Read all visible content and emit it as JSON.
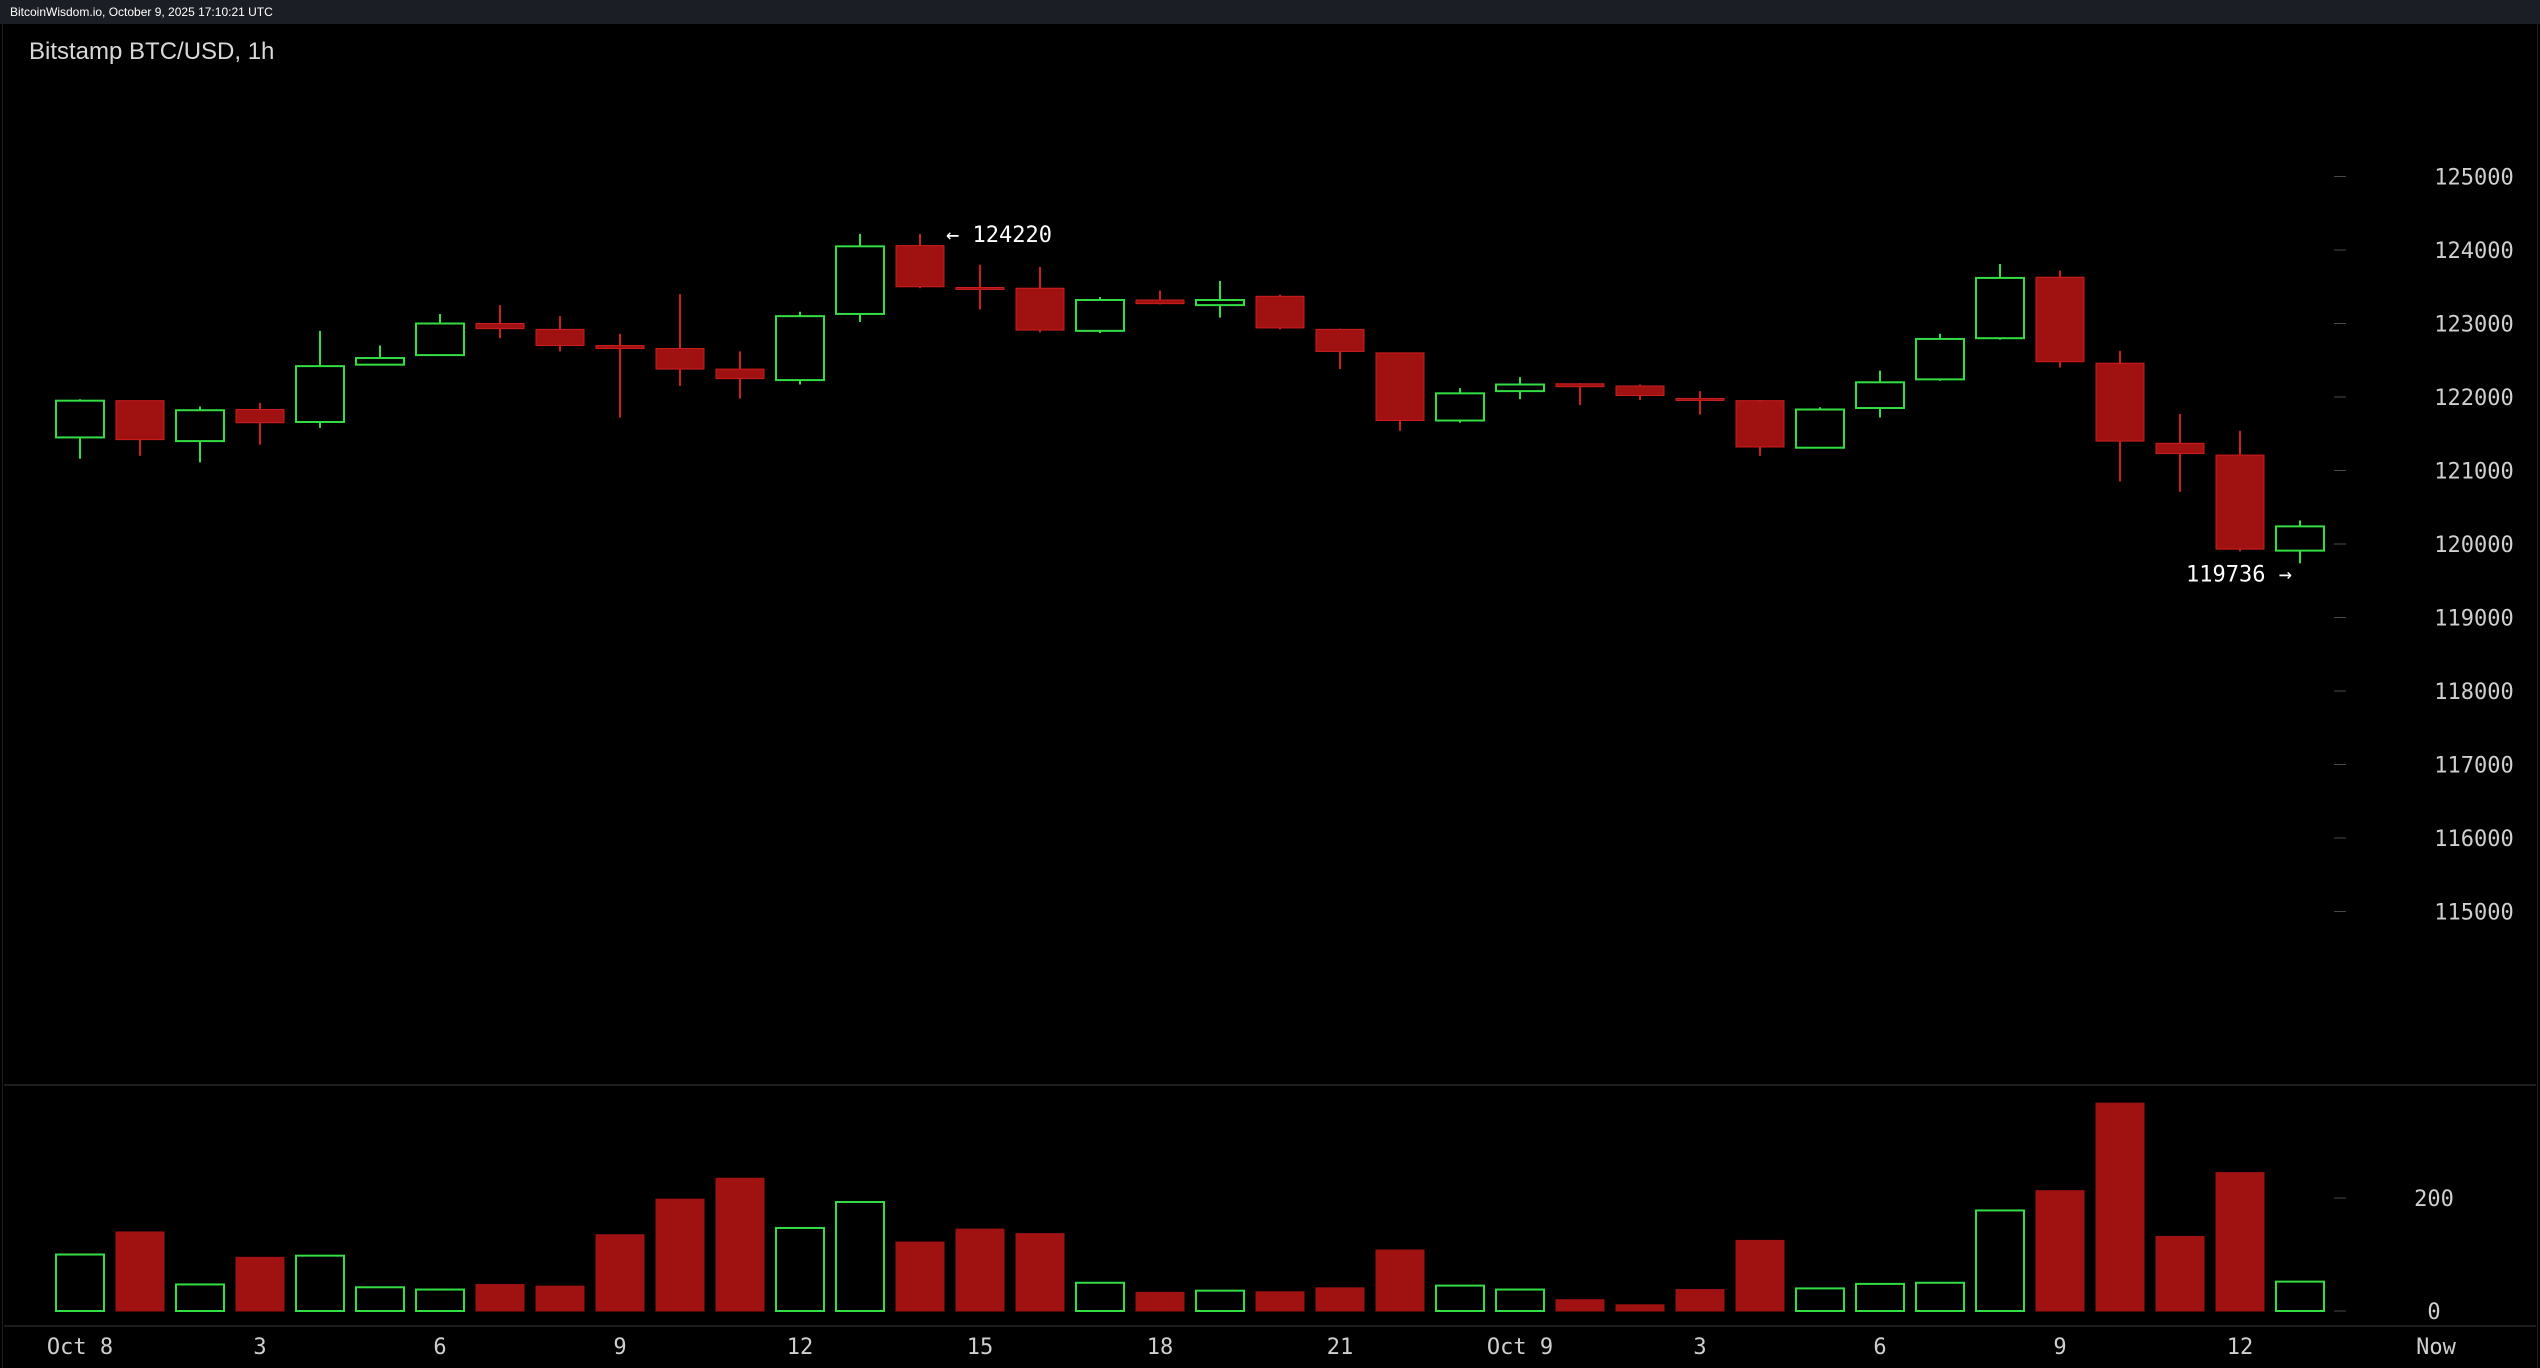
{
  "header": {
    "watermark": "BitcoinWisdom.io, October 9, 2025 17:10:21 UTC",
    "title": "Bitstamp BTC/USD, 1h"
  },
  "colors": {
    "up": "#33dd44",
    "down": "#a01212",
    "down_wick": "#cc1e1e",
    "background": "#000000",
    "grid": "#3a3a3a"
  },
  "chart_data": {
    "type": "candlestick",
    "title": "Bitstamp BTC/USD, 1h",
    "ylim": [
      114000,
      126000
    ],
    "y_ticks": [
      "125000",
      "124000",
      "123000",
      "122000",
      "121000",
      "120000",
      "119000",
      "118000",
      "117000",
      "116000",
      "115000"
    ],
    "volume_ylim": [
      0,
      370
    ],
    "volume_ticks": [
      "200",
      "0"
    ],
    "x_ticks": [
      {
        "i": 0,
        "label": "Oct 8"
      },
      {
        "i": 3,
        "label": "3"
      },
      {
        "i": 6,
        "label": "6"
      },
      {
        "i": 9,
        "label": "9"
      },
      {
        "i": 12,
        "label": "12"
      },
      {
        "i": 15,
        "label": "15"
      },
      {
        "i": 18,
        "label": "18"
      },
      {
        "i": 21,
        "label": "21"
      },
      {
        "i": 24,
        "label": "Oct 9"
      },
      {
        "i": 27,
        "label": "3"
      },
      {
        "i": 30,
        "label": "6"
      },
      {
        "i": 33,
        "label": "9"
      },
      {
        "i": 36,
        "label": "12"
      },
      {
        "i": 39,
        "label": "Now"
      }
    ],
    "annotations": [
      {
        "label": "← 124220",
        "i": 14,
        "price": 124220,
        "side": "right"
      },
      {
        "label": "119736 →",
        "i": 37,
        "price": 119736,
        "side": "left"
      }
    ],
    "candles": [
      {
        "o": 121450,
        "h": 121970,
        "l": 121160,
        "c": 121950,
        "v": 100
      },
      {
        "o": 121950,
        "h": 121950,
        "l": 121200,
        "c": 121420,
        "v": 140
      },
      {
        "o": 121400,
        "h": 121870,
        "l": 121110,
        "c": 121820,
        "v": 47
      },
      {
        "o": 121830,
        "h": 121920,
        "l": 121350,
        "c": 121650,
        "v": 95
      },
      {
        "o": 121660,
        "h": 122900,
        "l": 121580,
        "c": 122420,
        "v": 98
      },
      {
        "o": 122440,
        "h": 122700,
        "l": 122430,
        "c": 122530,
        "v": 42
      },
      {
        "o": 122570,
        "h": 123130,
        "l": 122560,
        "c": 123000,
        "v": 38
      },
      {
        "o": 123000,
        "h": 123250,
        "l": 122800,
        "c": 122930,
        "v": 47
      },
      {
        "o": 122920,
        "h": 123100,
        "l": 122620,
        "c": 122700,
        "v": 44
      },
      {
        "o": 122700,
        "h": 122860,
        "l": 121720,
        "c": 122660,
        "v": 135
      },
      {
        "o": 122660,
        "h": 123400,
        "l": 122150,
        "c": 122380,
        "v": 198
      },
      {
        "o": 122380,
        "h": 122620,
        "l": 121980,
        "c": 122250,
        "v": 235
      },
      {
        "o": 122230,
        "h": 123160,
        "l": 122170,
        "c": 123100,
        "v": 147
      },
      {
        "o": 123130,
        "h": 124220,
        "l": 123020,
        "c": 124050,
        "v": 193
      },
      {
        "o": 124060,
        "h": 124220,
        "l": 123480,
        "c": 123500,
        "v": 122
      },
      {
        "o": 123490,
        "h": 123800,
        "l": 123190,
        "c": 123480,
        "v": 145
      },
      {
        "o": 123480,
        "h": 123770,
        "l": 122880,
        "c": 122910,
        "v": 137
      },
      {
        "o": 122900,
        "h": 123360,
        "l": 122870,
        "c": 123320,
        "v": 50
      },
      {
        "o": 123320,
        "h": 123450,
        "l": 123260,
        "c": 123270,
        "v": 33
      },
      {
        "o": 123250,
        "h": 123580,
        "l": 123080,
        "c": 123320,
        "v": 36
      },
      {
        "o": 123370,
        "h": 123390,
        "l": 122920,
        "c": 122940,
        "v": 34
      },
      {
        "o": 122920,
        "h": 122930,
        "l": 122380,
        "c": 122620,
        "v": 41
      },
      {
        "o": 122600,
        "h": 122600,
        "l": 121540,
        "c": 121680,
        "v": 108
      },
      {
        "o": 121680,
        "h": 122120,
        "l": 121650,
        "c": 122050,
        "v": 45
      },
      {
        "o": 122080,
        "h": 122270,
        "l": 121970,
        "c": 122170,
        "v": 38
      },
      {
        "o": 122180,
        "h": 122190,
        "l": 121890,
        "c": 122140,
        "v": 20
      },
      {
        "o": 122150,
        "h": 122170,
        "l": 121960,
        "c": 122020,
        "v": 11
      },
      {
        "o": 121980,
        "h": 122080,
        "l": 121760,
        "c": 121970,
        "v": 38
      },
      {
        "o": 121950,
        "h": 121960,
        "l": 121200,
        "c": 121320,
        "v": 125
      },
      {
        "o": 121310,
        "h": 121860,
        "l": 121310,
        "c": 121830,
        "v": 40
      },
      {
        "o": 121850,
        "h": 122360,
        "l": 121720,
        "c": 122200,
        "v": 48
      },
      {
        "o": 122240,
        "h": 122860,
        "l": 122220,
        "c": 122790,
        "v": 50
      },
      {
        "o": 122800,
        "h": 123810,
        "l": 122780,
        "c": 123620,
        "v": 178
      },
      {
        "o": 123630,
        "h": 123720,
        "l": 122400,
        "c": 122480,
        "v": 213
      },
      {
        "o": 122460,
        "h": 122630,
        "l": 120850,
        "c": 121400,
        "v": 368
      },
      {
        "o": 121370,
        "h": 121770,
        "l": 120710,
        "c": 121230,
        "v": 132
      },
      {
        "o": 121210,
        "h": 121540,
        "l": 119900,
        "c": 119930,
        "v": 245
      },
      {
        "o": 119910,
        "h": 120320,
        "l": 119736,
        "c": 120240,
        "v": 52
      }
    ]
  }
}
